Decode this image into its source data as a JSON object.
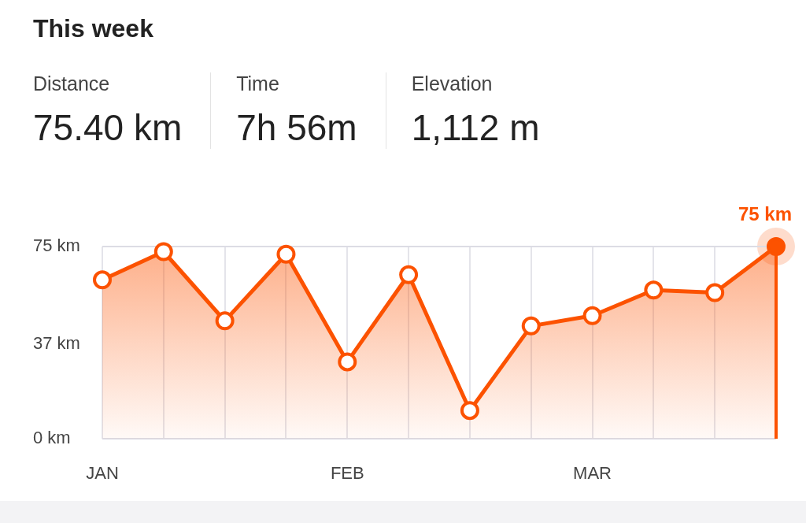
{
  "chart_data": {
    "type": "area",
    "title": "This week",
    "annotations": [
      "Distance",
      "75.40 km",
      "Time",
      "7h 56m",
      "Elevation",
      "1,112 m",
      {
        "text": "75 km",
        "y": 75
      }
    ],
    "categories": [
      "JAN",
      null,
      null,
      null,
      "FEB",
      null,
      null,
      null,
      "MAR",
      null,
      null,
      null
    ],
    "series": [
      {
        "color": "#fc5200",
        "values": [
          62,
          73,
          46,
          72,
          30,
          64,
          11,
          44,
          48,
          58,
          57,
          75
        ]
      }
    ],
    "ylim": [
      0,
      75
    ],
    "yticks": [
      {
        "value": 0,
        "label": "0 km"
      },
      {
        "value": 37,
        "label": "37 km"
      },
      {
        "value": 75,
        "label": "75 km"
      }
    ],
    "grid": "x",
    "marker": "circle",
    "legend": false
  }
}
